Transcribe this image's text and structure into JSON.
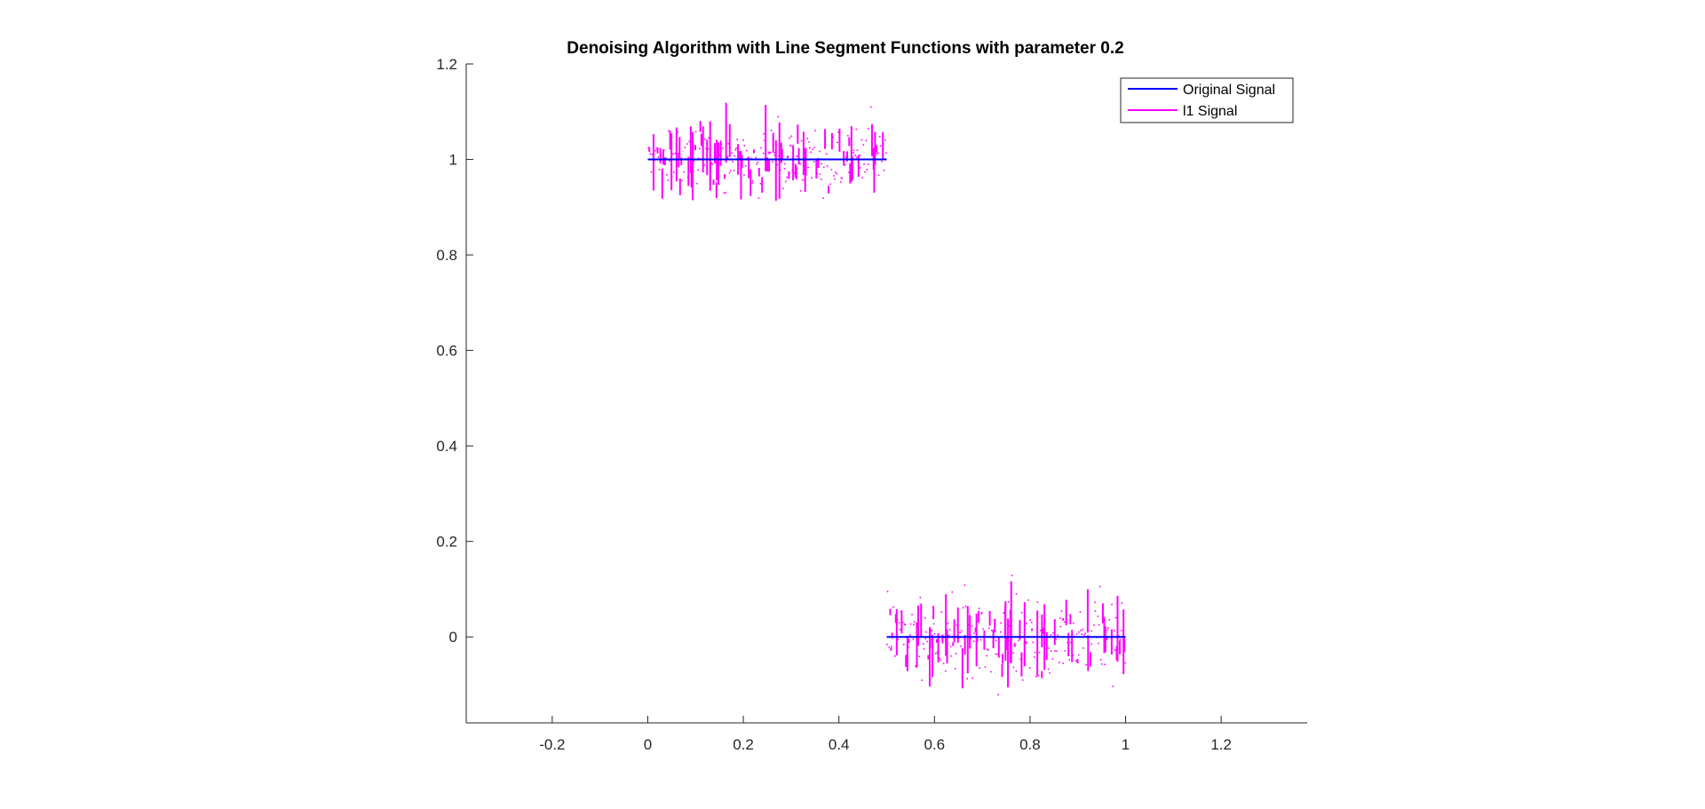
{
  "chart_data": {
    "type": "line",
    "title": "Denoising Algorithm with Line Segment Functions with parameter 0.2",
    "xlabel": "",
    "ylabel": "",
    "xlim": [
      -0.38,
      1.38
    ],
    "ylim": [
      -0.18,
      1.2
    ],
    "x_ticks": [
      -0.2,
      0,
      0.2,
      0.4,
      0.6,
      0.8,
      1,
      1.2
    ],
    "x_tick_labels": [
      "-0.2",
      "0",
      "0.2",
      "0.4",
      "0.6",
      "0.8",
      "1",
      "1.2"
    ],
    "y_ticks": [
      0,
      0.2,
      0.4,
      0.6,
      0.8,
      1,
      1.2
    ],
    "y_tick_labels": [
      "0",
      "0.2",
      "0.4",
      "0.6",
      "0.8",
      "1",
      "1.2"
    ],
    "grid": false,
    "legend_position": "top-right",
    "series": [
      {
        "name": "Original Signal",
        "color": "#0000ff",
        "segments": [
          {
            "x": [
              0,
              0.5
            ],
            "y": [
              1,
              1
            ]
          },
          {
            "x": [
              0.5,
              1
            ],
            "y": [
              0,
              0
            ]
          }
        ]
      },
      {
        "name": "l1 Signal",
        "color": "#ff00ff",
        "noise_around": [
          {
            "x_range": [
              0,
              0.5
            ],
            "center": 1,
            "min": 0.83,
            "max": 1.16
          },
          {
            "x_range": [
              0.5,
              1
            ],
            "center": 0,
            "min": -0.17,
            "max": 0.21
          }
        ]
      }
    ]
  }
}
